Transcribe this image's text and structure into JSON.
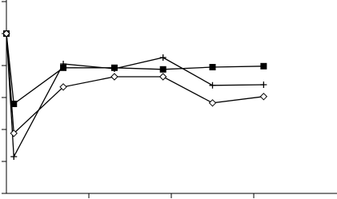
{
  "chart_data": {
    "type": "line",
    "x": [
      0,
      0.09,
      0.69,
      1.31,
      1.9,
      2.5,
      3.12
    ],
    "series": [
      {
        "color": "#000000",
        "marker": "square",
        "values": [
          5,
          2.8,
          3.93,
          3.93,
          3.88,
          3.95,
          3.98
        ]
      },
      {
        "color": "#000000",
        "marker": "plus",
        "values": [
          5,
          1.15,
          4.05,
          3.9,
          4.25,
          3.38,
          3.4
        ]
      },
      {
        "color": "#000000",
        "marker": "diamond",
        "values": [
          5,
          1.88,
          3.33,
          3.65,
          3.65,
          2.83,
          3.03
        ]
      }
    ],
    "xlim": [
      0,
      4
    ],
    "xticks": [
      1,
      2,
      3
    ],
    "ylim": [
      0,
      6
    ],
    "yticks": [
      0,
      1,
      2,
      3,
      4,
      5,
      6
    ],
    "grid": false
  }
}
